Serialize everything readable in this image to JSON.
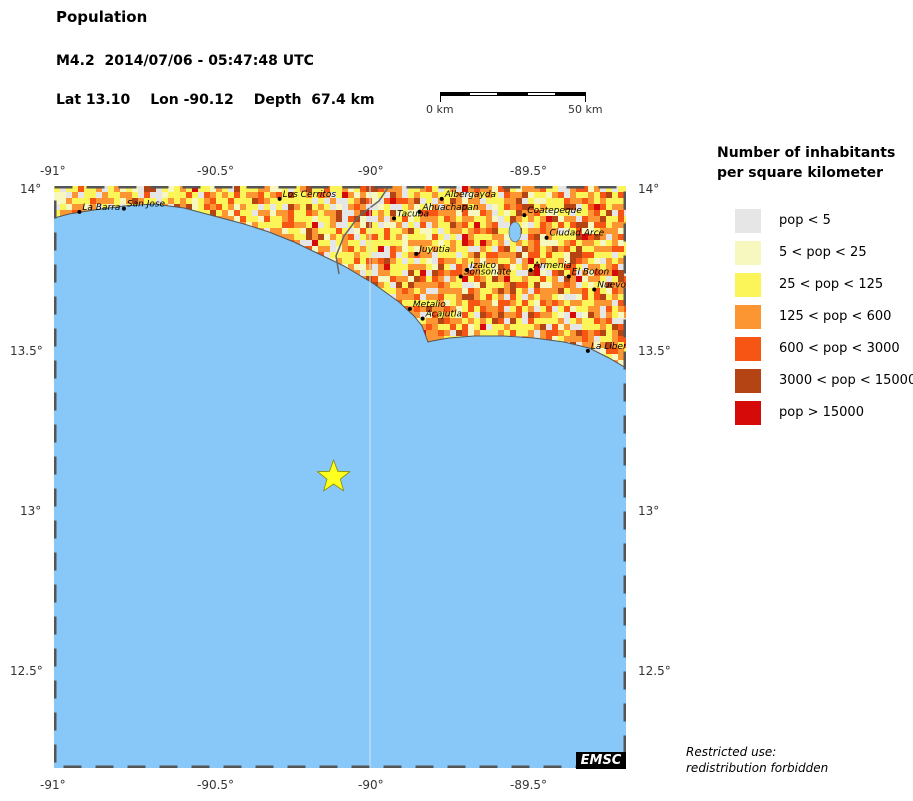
{
  "title": "Population",
  "event": {
    "label": "M4.2  2014/07/06 - 05:47:48 UTC",
    "lat_label": "Lat 13.10",
    "lon_label": "Lon -90.12",
    "depth_label": "Depth  67.4 km",
    "epicenter": {
      "lat": 13.1,
      "lon": -90.12
    }
  },
  "scale": {
    "start_label": "0 km",
    "end_label": "50 km"
  },
  "axes": {
    "lon_ticks": [
      "-91°",
      "-90.5°",
      "-90°",
      "-89.5°"
    ],
    "lat_ticks": [
      "14°",
      "13.5°",
      "13°",
      "12.5°"
    ],
    "lon_range": [
      -91,
      -89.2
    ],
    "lat_range": [
      12.2,
      14
    ]
  },
  "cities": [
    {
      "name": "La Barra",
      "lon": -90.92,
      "lat": 13.92
    },
    {
      "name": "San Jose",
      "lon": -90.78,
      "lat": 13.93
    },
    {
      "name": "Los Cerritos",
      "lon": -90.29,
      "lat": 13.96
    },
    {
      "name": "Albergayda",
      "lon": -89.78,
      "lat": 13.96
    },
    {
      "name": "Ahuachapan",
      "lon": -89.85,
      "lat": 13.92
    },
    {
      "name": "Tacuba",
      "lon": -89.93,
      "lat": 13.9
    },
    {
      "name": "Coatepeque",
      "lon": -89.52,
      "lat": 13.91
    },
    {
      "name": "Ciudad Arce",
      "lon": -89.45,
      "lat": 13.84
    },
    {
      "name": "Juyutia",
      "lon": -89.86,
      "lat": 13.79
    },
    {
      "name": "Izalco",
      "lon": -89.7,
      "lat": 13.74
    },
    {
      "name": "Sonsonate",
      "lon": -89.72,
      "lat": 13.72
    },
    {
      "name": "Armenia",
      "lon": -89.5,
      "lat": 13.74
    },
    {
      "name": "El Boton",
      "lon": -89.38,
      "lat": 13.72
    },
    {
      "name": "Nuevo",
      "lon": -89.3,
      "lat": 13.68
    },
    {
      "name": "Metalio",
      "lon": -89.88,
      "lat": 13.62
    },
    {
      "name": "Acajutla",
      "lon": -89.84,
      "lat": 13.59
    },
    {
      "name": "La Liber",
      "lon": -89.32,
      "lat": 13.49
    }
  ],
  "legend": {
    "title_line1": "Number of inhabitants",
    "title_line2": "per square kilometer",
    "items": [
      {
        "label": "pop < 5",
        "color": "#e6e6e6"
      },
      {
        "label": "5 < pop < 25",
        "color": "#f7f7c0"
      },
      {
        "label": "25 < pop < 125",
        "color": "#fbf55a"
      },
      {
        "label": "125 < pop < 600",
        "color": "#fb9632"
      },
      {
        "label": "600 < pop < 3000",
        "color": "#f75514"
      },
      {
        "label": "3000 < pop < 15000",
        "color": "#b44414"
      },
      {
        "label": "pop > 15000",
        "color": "#d70a0a"
      }
    ]
  },
  "colors": {
    "ocean": "#88c8f8",
    "epicenter": "#ffff20"
  },
  "notice_line1": "Restricted use:",
  "notice_line2": "redistribution forbidden",
  "badge": "EMSC"
}
